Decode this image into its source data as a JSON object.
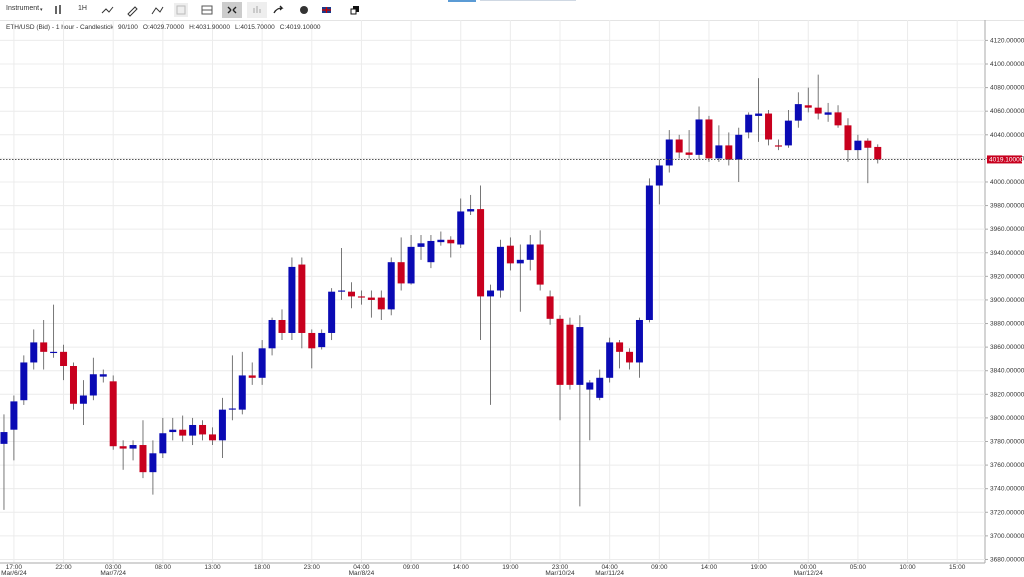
{
  "toolbar": {
    "instrument": "Instrument",
    "interval": "1H"
  },
  "chart_data": {
    "type": "candlestick",
    "title": "ETH/USD (Bid) - 1 hour - Candlestick",
    "info": [
      "90/100",
      "O:4029.70000",
      "H:4031.90000",
      "L:4015.70000",
      "C:4019.10000"
    ],
    "up_color": "#0a0ab4",
    "down_color": "#c8001e",
    "open": [
      3778,
      3790,
      3815,
      3847,
      3864,
      3855,
      3856,
      3844,
      3812,
      3819,
      3835,
      3831,
      3776,
      3774,
      3777,
      3754,
      3770,
      3788,
      3790,
      3785,
      3794,
      3786,
      3781,
      3807,
      3807,
      3836,
      3834,
      3859,
      3883,
      3872,
      3930,
      3872,
      3860,
      3872,
      3907,
      3907,
      3903,
      3902,
      3902,
      3892,
      3932,
      3914,
      3945,
      3932,
      3949,
      3951,
      3947,
      3975,
      3977,
      3903,
      3908,
      3946,
      3931,
      3934,
      3947,
      3903,
      3884,
      3879,
      3828,
      3824,
      3817,
      3834,
      3864,
      3856,
      3847,
      3883,
      3997,
      4014,
      4036,
      4025,
      4023,
      4053,
      4020,
      4031,
      4019,
      4042,
      4056,
      4058,
      4031,
      4031,
      4052,
      4065,
      4063,
      4057,
      4059,
      4048,
      4027,
      4035,
      4029.7
    ],
    "high": [
      3803,
      3819,
      3853,
      3875,
      3883,
      3896,
      3862,
      3847,
      3832,
      3851,
      3841,
      3836,
      3781,
      3781,
      3798,
      3781,
      3800,
      3800,
      3802,
      3800,
      3798,
      3792,
      3817,
      3853,
      3856,
      3847,
      3866,
      3885,
      3892,
      3936,
      3936,
      3875,
      3875,
      3910,
      3944,
      3915,
      3908,
      3908,
      3908,
      3936,
      3953,
      3955,
      3955,
      3955,
      3958,
      3954,
      3986,
      3989,
      3997,
      3913,
      3951,
      3953,
      3947,
      3955,
      3959,
      3908,
      3887,
      3885,
      3887,
      3832,
      3841,
      3868,
      3866,
      3859,
      3885,
      4003,
      4019,
      4044,
      4040,
      4044,
      4064,
      4056,
      4048,
      4042,
      4046,
      4059,
      4088,
      4061,
      4036,
      4061,
      4076,
      4080,
      4091,
      4067,
      4065,
      4054,
      4040,
      4037,
      4031.9
    ],
    "low": [
      3722,
      3764,
      3811,
      3841,
      3841,
      3851,
      3832,
      3807,
      3794,
      3815,
      3830,
      3773,
      3756,
      3764,
      3749,
      3735,
      3766,
      3781,
      3780,
      3777,
      3781,
      3777,
      3766,
      3798,
      3803,
      3828,
      3828,
      3853,
      3866,
      3866,
      3859,
      3842,
      3858,
      3866,
      3900,
      3893,
      3896,
      3885,
      3883,
      3887,
      3908,
      3913,
      3934,
      3927,
      3946,
      3936,
      3944,
      3972,
      3866,
      3811,
      3902,
      3925,
      3890,
      3925,
      3908,
      3879,
      3798,
      3824,
      3725,
      3781,
      3815,
      3830,
      3842,
      3841,
      3834,
      3881,
      3981,
      4008,
      4020,
      4020,
      4019,
      4017,
      4017,
      4014,
      4000,
      4037,
      4034,
      4031,
      4027,
      4029,
      4046,
      4059,
      4053,
      4051,
      4046,
      4017,
      4019,
      3999,
      4015.7
    ],
    "close": [
      3788,
      3814,
      3847,
      3864,
      3856,
      3856,
      3844,
      3812,
      3819,
      3837,
      3837,
      3776,
      3774,
      3777,
      3754,
      3770,
      3787,
      3790,
      3785,
      3794,
      3786,
      3781,
      3807,
      3808,
      3836,
      3834,
      3859,
      3883,
      3872,
      3928,
      3872,
      3859,
      3872,
      3907,
      3908,
      3903,
      3902,
      3900,
      3892,
      3932,
      3914,
      3945,
      3948,
      3950,
      3951,
      3948,
      3975,
      3977,
      3903,
      3908,
      3945,
      3931,
      3934,
      3947,
      3913,
      3884,
      3828,
      3828,
      3877,
      3830,
      3834,
      3864,
      3856,
      3847,
      3883,
      3997,
      4014,
      4036,
      4025,
      4023,
      4053,
      4020,
      4031,
      4019,
      4040,
      4057,
      4058,
      4036,
      4030,
      4052,
      4066,
      4063,
      4058,
      4059,
      4048,
      4027,
      4035,
      4029,
      4019.1
    ],
    "last_price": {
      "value": 4019.1,
      "label": "4019.10000"
    },
    "xlim": [
      -0.4,
      98.8
    ],
    "xticks": [
      {
        "value": 1,
        "label": "17:00"
      },
      {
        "value": 6,
        "label": "22:00"
      },
      {
        "value": 11,
        "label": "03:00"
      },
      {
        "value": 16,
        "label": "08:00"
      },
      {
        "value": 21,
        "label": "13:00"
      },
      {
        "value": 26,
        "label": "18:00"
      },
      {
        "value": 31,
        "label": "23:00"
      },
      {
        "value": 36,
        "label": "04:00"
      },
      {
        "value": 41,
        "label": "09:00"
      },
      {
        "value": 46,
        "label": "14:00"
      },
      {
        "value": 51,
        "label": "19:00"
      },
      {
        "value": 56,
        "label": "23:00"
      },
      {
        "value": 61,
        "label": "04:00"
      },
      {
        "value": 66,
        "label": "09:00"
      },
      {
        "value": 71,
        "label": "14:00"
      },
      {
        "value": 76,
        "label": "19:00"
      },
      {
        "value": 81,
        "label": "00:00"
      },
      {
        "value": 86,
        "label": "05:00"
      },
      {
        "value": 91,
        "label": "10:00"
      },
      {
        "value": 96,
        "label": "15:00"
      }
    ],
    "xdates": [
      {
        "value": 1,
        "label": "Mar/6/24"
      },
      {
        "value": 11,
        "label": "Mar/7/24"
      },
      {
        "value": 36,
        "label": "Mar/8/24"
      },
      {
        "value": 56,
        "label": "Mar/10/24"
      },
      {
        "value": 61,
        "label": "Mar/11/24"
      },
      {
        "value": 81,
        "label": "Mar/12/24"
      }
    ],
    "ylim": [
      3677,
      4139
    ],
    "yticks": [
      {
        "value": 3680,
        "label": "3680.00000"
      },
      {
        "value": 3700,
        "label": "3700.00000"
      },
      {
        "value": 3720,
        "label": "3720.00000"
      },
      {
        "value": 3740,
        "label": "3740.00000"
      },
      {
        "value": 3760,
        "label": "3760.00000"
      },
      {
        "value": 3780,
        "label": "3780.00000"
      },
      {
        "value": 3800,
        "label": "3800.00000"
      },
      {
        "value": 3820,
        "label": "3820.00000"
      },
      {
        "value": 3840,
        "label": "3840.00000"
      },
      {
        "value": 3860,
        "label": "3860.00000"
      },
      {
        "value": 3880,
        "label": "3880.00000"
      },
      {
        "value": 3900,
        "label": "3900.00000"
      },
      {
        "value": 3920,
        "label": "3920.00000"
      },
      {
        "value": 3940,
        "label": "3940.00000"
      },
      {
        "value": 3960,
        "label": "3960.00000"
      },
      {
        "value": 3980,
        "label": "3980.00000"
      },
      {
        "value": 4000,
        "label": "4000.00000"
      },
      {
        "value": 4020,
        "label": "4020.00000"
      },
      {
        "value": 4040,
        "label": "4040.00000"
      },
      {
        "value": 4060,
        "label": "4060.00000"
      },
      {
        "value": 4080,
        "label": "4080.00000"
      },
      {
        "value": 4100,
        "label": "4100.00000"
      },
      {
        "value": 4120,
        "label": "4120.00000"
      }
    ],
    "grid": true
  }
}
